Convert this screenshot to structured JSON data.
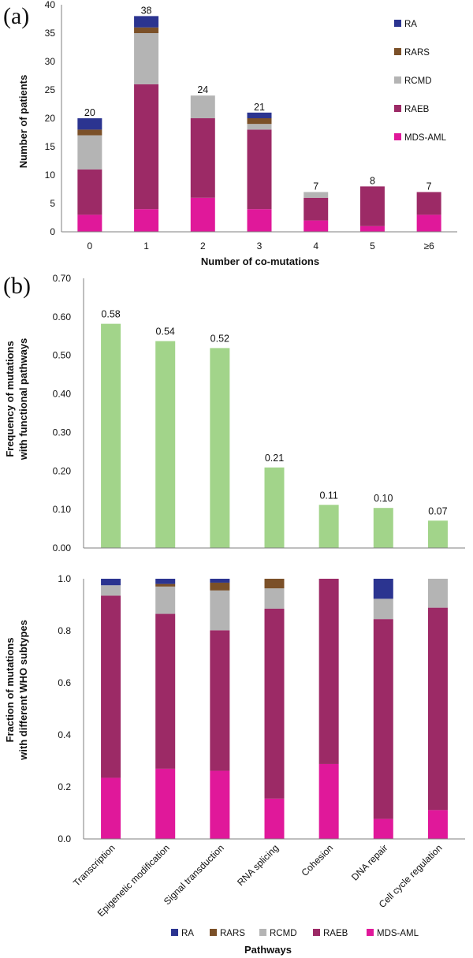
{
  "colors": {
    "RA": "#2b3490",
    "RARS": "#7b5028",
    "RCMD": "#b4b4b4",
    "RAEB": "#9c2a66",
    "MDS-AML": "#e0189a",
    "freq": "#a2d48a",
    "axis": "#7f7f7f"
  },
  "chart_data": [
    {
      "id": "a",
      "panel_label": "(a)",
      "type": "bar",
      "stacked": true,
      "xlabel": "Number of co-mutations",
      "ylabel": "Number of patients",
      "ylim": [
        0,
        40
      ],
      "yticks": [
        "0",
        "5",
        "10",
        "15",
        "20",
        "25",
        "30",
        "35",
        "40"
      ],
      "categories": [
        "0",
        "1",
        "2",
        "3",
        "4",
        "5",
        "≥6"
      ],
      "totals": [
        "20",
        "38",
        "24",
        "21",
        "7",
        "8",
        "7"
      ],
      "legend_position": "right inside",
      "series": [
        {
          "name": "MDS-AML",
          "values": [
            3,
            4,
            6,
            4,
            2,
            1,
            3
          ]
        },
        {
          "name": "RAEB",
          "values": [
            8,
            22,
            14,
            14,
            4,
            7,
            4
          ]
        },
        {
          "name": "RCMD",
          "values": [
            6,
            9,
            4,
            1,
            1,
            0,
            0
          ]
        },
        {
          "name": "RARS",
          "values": [
            1,
            1,
            0,
            1,
            0,
            0,
            0
          ]
        },
        {
          "name": "RA",
          "values": [
            2,
            2,
            0,
            1,
            0,
            0,
            0
          ]
        }
      ]
    },
    {
      "id": "b_top",
      "panel_label": "(b)",
      "type": "bar",
      "xlabel": "",
      "ylabel_lines": [
        "Frequency of mutations",
        "with functional pathways"
      ],
      "ylim": [
        0,
        0.7
      ],
      "yticks": [
        "0.00",
        "0.10",
        "0.20",
        "0.30",
        "0.40",
        "0.50",
        "0.60",
        "0.70"
      ],
      "categories": [
        "Transcription",
        "Epigenetic modification",
        "Signal transduction",
        "RNA splicing",
        "Cohesion",
        "DNA repair",
        "Cell cycle regulation"
      ],
      "values": [
        0.582,
        0.537,
        0.519,
        0.209,
        0.112,
        0.104,
        0.071
      ],
      "data_labels": [
        "0.58",
        "0.54",
        "0.52",
        "0.21",
        "0.11",
        "0.10",
        "0.07"
      ]
    },
    {
      "id": "b_bottom",
      "type": "bar",
      "stacked": true,
      "xlabel": "Pathways",
      "ylabel_lines": [
        "Fraction of mutations",
        "with different WHO subtypes"
      ],
      "ylim": [
        0,
        1
      ],
      "yticks": [
        "0.0",
        "0.2",
        "0.4",
        "0.6",
        "0.8",
        "1.0"
      ],
      "categories": [
        "Transcription",
        "Epigenetic modification",
        "Signal transduction",
        "RNA splicing",
        "Cohesion",
        "DNA repair",
        "Cell cycle regulation"
      ],
      "legend_position": "bottom",
      "series": [
        {
          "name": "MDS-AML",
          "values": [
            0.235,
            0.27,
            0.262,
            0.155,
            0.288,
            0.077,
            0.111
          ]
        },
        {
          "name": "RAEB",
          "values": [
            0.7,
            0.595,
            0.54,
            0.73,
            0.712,
            0.768,
            0.778
          ]
        },
        {
          "name": "RCMD",
          "values": [
            0.04,
            0.105,
            0.153,
            0.078,
            0,
            0.078,
            0.111
          ]
        },
        {
          "name": "RARS",
          "values": [
            0,
            0.01,
            0.03,
            0.037,
            0,
            0,
            0
          ]
        },
        {
          "name": "RA",
          "values": [
            0.025,
            0.02,
            0.015,
            0,
            0,
            0.077,
            0
          ]
        }
      ]
    }
  ]
}
